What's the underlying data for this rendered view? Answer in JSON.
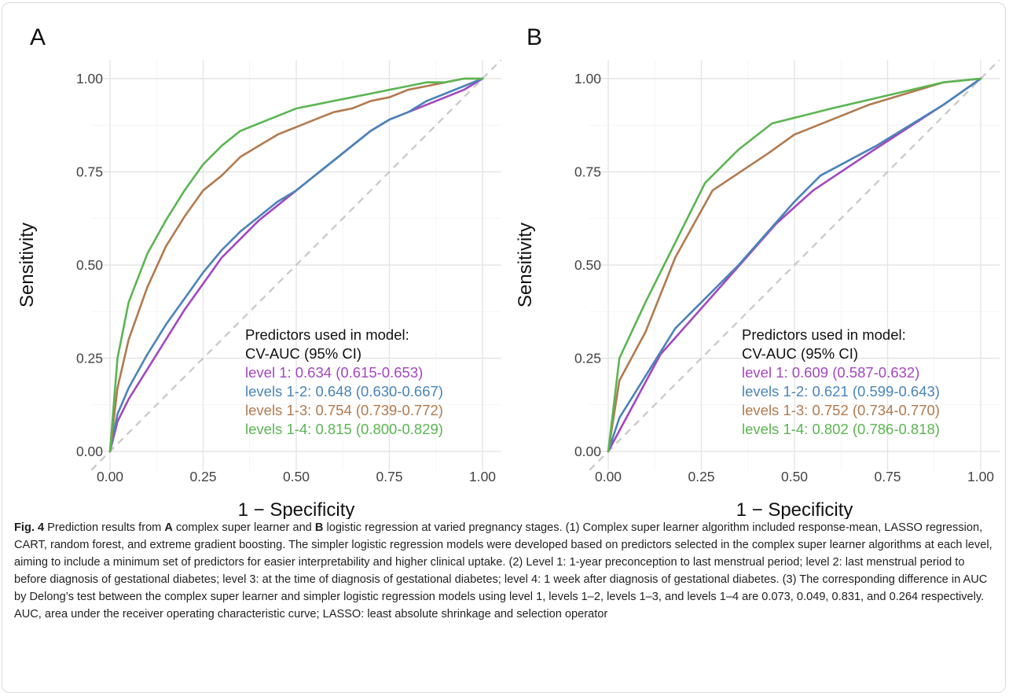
{
  "chart_data": [
    {
      "type": "line",
      "panel_label": "A",
      "xlabel": "1 − Specificity",
      "ylabel": "Sensitivity",
      "xlim": [
        0,
        1
      ],
      "ylim": [
        0,
        1
      ],
      "x_ticks": [
        "0.00",
        "0.25",
        "0.50",
        "0.75",
        "1.00"
      ],
      "y_ticks": [
        "0.00",
        "0.25",
        "0.50",
        "0.75",
        "1.00"
      ],
      "grid": true,
      "diagonal_reference": true,
      "legend_placement": "bottom-right",
      "legend_title": [
        "Predictors used in model:",
        "CV-AUC (95% CI)"
      ],
      "series": [
        {
          "label": "level 1: ",
          "auc": "0.634",
          "ci": "(0.615-0.653)",
          "color": "#a347c0",
          "x": [
            0,
            0.02,
            0.05,
            0.1,
            0.15,
            0.2,
            0.25,
            0.3,
            0.35,
            0.4,
            0.45,
            0.5,
            0.55,
            0.6,
            0.65,
            0.7,
            0.75,
            0.8,
            0.85,
            0.9,
            0.95,
            1.0
          ],
          "y": [
            0,
            0.08,
            0.14,
            0.22,
            0.3,
            0.38,
            0.45,
            0.52,
            0.57,
            0.62,
            0.66,
            0.7,
            0.74,
            0.78,
            0.82,
            0.86,
            0.89,
            0.91,
            0.93,
            0.95,
            0.97,
            1.0
          ]
        },
        {
          "label": "levels 1-2: ",
          "auc": "0.648",
          "ci": "(0.630-0.667)",
          "color": "#4a84b8",
          "x": [
            0,
            0.02,
            0.05,
            0.1,
            0.15,
            0.2,
            0.25,
            0.3,
            0.35,
            0.4,
            0.45,
            0.5,
            0.55,
            0.6,
            0.65,
            0.7,
            0.75,
            0.8,
            0.85,
            0.9,
            0.95,
            1.0
          ],
          "y": [
            0,
            0.1,
            0.17,
            0.26,
            0.34,
            0.41,
            0.48,
            0.54,
            0.59,
            0.63,
            0.67,
            0.7,
            0.74,
            0.78,
            0.82,
            0.86,
            0.89,
            0.91,
            0.94,
            0.96,
            0.98,
            1.0
          ]
        },
        {
          "label": "levels 1-3: ",
          "auc": "0.754",
          "ci": "(0.739-0.772)",
          "color": "#b27a4e",
          "x": [
            0,
            0.02,
            0.05,
            0.1,
            0.15,
            0.2,
            0.25,
            0.3,
            0.35,
            0.4,
            0.45,
            0.5,
            0.55,
            0.6,
            0.65,
            0.7,
            0.75,
            0.8,
            0.85,
            0.9,
            0.95,
            1.0
          ],
          "y": [
            0,
            0.17,
            0.3,
            0.44,
            0.55,
            0.63,
            0.7,
            0.74,
            0.79,
            0.82,
            0.85,
            0.87,
            0.89,
            0.91,
            0.92,
            0.94,
            0.95,
            0.97,
            0.98,
            0.99,
            1.0,
            1.0
          ]
        },
        {
          "label": "levels 1-4: ",
          "auc": "0.815",
          "ci": "(0.800-0.829)",
          "color": "#5bb552",
          "x": [
            0,
            0.02,
            0.05,
            0.1,
            0.15,
            0.2,
            0.25,
            0.3,
            0.35,
            0.4,
            0.45,
            0.5,
            0.55,
            0.6,
            0.65,
            0.7,
            0.75,
            0.8,
            0.85,
            0.9,
            0.95,
            1.0
          ],
          "y": [
            0,
            0.25,
            0.4,
            0.53,
            0.62,
            0.7,
            0.77,
            0.82,
            0.86,
            0.88,
            0.9,
            0.92,
            0.93,
            0.94,
            0.95,
            0.96,
            0.97,
            0.98,
            0.99,
            0.99,
            1.0,
            1.0
          ]
        }
      ]
    },
    {
      "type": "line",
      "panel_label": "B",
      "xlabel": "1 − Specificity",
      "ylabel": "Sensitivity",
      "xlim": [
        0,
        1
      ],
      "ylim": [
        0,
        1
      ],
      "x_ticks": [
        "0.00",
        "0.25",
        "0.50",
        "0.75",
        "1.00"
      ],
      "y_ticks": [
        "0.00",
        "0.25",
        "0.50",
        "0.75",
        "1.00"
      ],
      "grid": true,
      "diagonal_reference": true,
      "legend_placement": "bottom-right",
      "legend_title": [
        "Predictors used in model:",
        "CV-AUC (95% CI)"
      ],
      "series": [
        {
          "label": "level 1: ",
          "auc": "0.609",
          "ci": "(0.587-0.632)",
          "color": "#a347c0",
          "x": [
            0,
            0.14,
            0.3,
            0.45,
            0.55,
            0.7,
            0.9,
            1.0
          ],
          "y": [
            0,
            0.26,
            0.44,
            0.61,
            0.7,
            0.8,
            0.93,
            1.0
          ]
        },
        {
          "label": "levels 1-2: ",
          "auc": "0.621",
          "ci": "(0.599-0.643)",
          "color": "#4a84b8",
          "x": [
            0,
            0.03,
            0.18,
            0.35,
            0.5,
            0.57,
            0.72,
            0.9,
            1.0
          ],
          "y": [
            0,
            0.09,
            0.33,
            0.5,
            0.67,
            0.74,
            0.82,
            0.93,
            1.0
          ]
        },
        {
          "label": "levels 1-3: ",
          "auc": "0.752",
          "ci": "(0.734-0.770)",
          "color": "#b27a4e",
          "x": [
            0,
            0.03,
            0.1,
            0.18,
            0.28,
            0.43,
            0.5,
            0.7,
            0.9,
            1.0
          ],
          "y": [
            0,
            0.19,
            0.32,
            0.52,
            0.7,
            0.8,
            0.85,
            0.93,
            0.99,
            1.0
          ]
        },
        {
          "label": "levels 1-4: ",
          "auc": "0.802",
          "ci": "(0.786-0.818)",
          "color": "#5bb552",
          "x": [
            0,
            0.03,
            0.1,
            0.16,
            0.26,
            0.35,
            0.44,
            0.6,
            0.9,
            1.0
          ],
          "y": [
            0,
            0.25,
            0.4,
            0.52,
            0.72,
            0.81,
            0.88,
            0.92,
            0.99,
            1.0
          ]
        }
      ]
    }
  ],
  "caption": {
    "fig_label": "Fig. 4",
    "part1": "  Prediction results from ",
    "a": "A",
    "part2": " complex super learner and ",
    "b": "B",
    "part3": " logistic regression at varied pregnancy stages. (1) Complex super learner algorithm included response-mean, LASSO regression, CART, random forest, and extreme gradient boosting. The simpler logistic regression models were developed based on predictors selected in the complex super learner algorithms at each level, aiming to include a minimum set of predictors for easier interpretability and higher clinical uptake. (2) Level 1: 1-year preconception to last menstrual period; level 2: last menstrual period to before diagnosis of gestational diabetes; level 3: at the time of diagnosis of gestational diabetes; level 4: 1 week after diagnosis of gestational diabetes. (3) The corresponding difference in AUC by Delong’s test between the complex super learner and simpler logistic regression models using level 1, levels 1–2, levels 1–3, and levels 1–4 are 0.073, 0.049, 0.831, and 0.264 respectively. AUC, area under the receiver operating characteristic curve; LASSO: least absolute shrinkage and selection operator"
  }
}
